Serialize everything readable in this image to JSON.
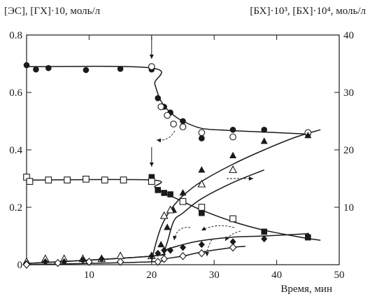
{
  "chart_data": {
    "type": "scatter",
    "title": "",
    "xlabel": "Время, мин",
    "ylabel_left": "[ЭС], [ГХ]·10, моль/л",
    "ylabel_right": "[БХ]·10³, [БХ]·10⁴, моль/л",
    "xlim": [
      0,
      50
    ],
    "ylim_left": [
      0,
      0.8
    ],
    "ylim_right": [
      0,
      40
    ],
    "x_ticks": [
      10,
      20,
      30,
      40,
      50
    ],
    "y_left_ticks": [
      0.2,
      0.4,
      0.6,
      0.8
    ],
    "y_right_ticks": [
      10,
      20,
      30,
      40
    ],
    "origin_label": "0",
    "grid": false,
    "legend": "none",
    "marker_labels": [
      {
        "name": "arrow-marker-upper",
        "x": 20
      },
      {
        "name": "arrow-marker-lower",
        "x": 20
      }
    ],
    "series": [
      {
        "marker": "filled-circle",
        "axis": "left",
        "points": [
          [
            0,
            0.695
          ],
          [
            1.5,
            0.68
          ],
          [
            3.5,
            0.685
          ],
          [
            9.5,
            0.678
          ],
          [
            15,
            0.682
          ],
          [
            20,
            0.68
          ],
          [
            21,
            0.58
          ],
          [
            22,
            0.55
          ],
          [
            23,
            0.53
          ],
          [
            25,
            0.5
          ],
          [
            28,
            0.44
          ],
          [
            33,
            0.47
          ],
          [
            38,
            0.47
          ],
          [
            45,
            0.455
          ]
        ],
        "curve": [
          [
            0,
            0.69
          ],
          [
            20,
            0.685
          ],
          [
            20.5,
            0.63
          ],
          [
            21.5,
            0.57
          ],
          [
            23,
            0.53
          ],
          [
            25,
            0.5
          ],
          [
            28,
            0.475
          ],
          [
            32,
            0.468
          ],
          [
            38,
            0.462
          ],
          [
            45,
            0.455
          ]
        ]
      },
      {
        "marker": "open-circle",
        "axis": "left",
        "points": [
          [
            20,
            0.69
          ],
          [
            21.5,
            0.55
          ],
          [
            22.5,
            0.52
          ],
          [
            23.5,
            0.49
          ],
          [
            25,
            0.48
          ],
          [
            28,
            0.46
          ],
          [
            33,
            0.445
          ],
          [
            45,
            0.46
          ]
        ],
        "curve": []
      },
      {
        "marker": "filled-square",
        "axis": "left",
        "points": [
          [
            20,
            0.305
          ],
          [
            21,
            0.26
          ],
          [
            22,
            0.25
          ],
          [
            23,
            0.245
          ],
          [
            25,
            0.22
          ],
          [
            28,
            0.18
          ],
          [
            38,
            0.115
          ],
          [
            45,
            0.095
          ]
        ],
        "curve": [
          [
            0,
            0.295
          ],
          [
            20,
            0.295
          ],
          [
            20.5,
            0.27
          ],
          [
            22,
            0.25
          ],
          [
            25,
            0.22
          ],
          [
            28,
            0.19
          ],
          [
            33,
            0.15
          ],
          [
            38,
            0.12
          ],
          [
            44,
            0.095
          ],
          [
            47,
            0.085
          ]
        ]
      },
      {
        "marker": "open-square",
        "axis": "left",
        "points": [
          [
            0,
            0.305
          ],
          [
            0.5,
            0.29
          ],
          [
            3.5,
            0.295
          ],
          [
            6.5,
            0.295
          ],
          [
            9.5,
            0.298
          ],
          [
            12.5,
            0.295
          ],
          [
            15.5,
            0.295
          ],
          [
            20,
            0.29
          ],
          [
            25,
            0.22
          ],
          [
            28,
            0.2
          ],
          [
            33,
            0.16
          ]
        ],
        "curve": []
      },
      {
        "marker": "filled-triangle",
        "axis": "right",
        "points": [
          [
            21.5,
            3.5
          ],
          [
            22.5,
            6.5
          ],
          [
            23.5,
            9.5
          ],
          [
            25,
            12.5
          ],
          [
            28,
            16.5
          ],
          [
            33,
            19
          ],
          [
            38,
            21.5
          ],
          [
            45,
            22.5
          ]
        ],
        "curve": [
          [
            20,
            0.5
          ],
          [
            20.5,
            3
          ],
          [
            21.5,
            6.5
          ],
          [
            23,
            9.5
          ],
          [
            25,
            12
          ],
          [
            28,
            14.5
          ],
          [
            33,
            17.5
          ],
          [
            38,
            20
          ],
          [
            43,
            22.2
          ],
          [
            47,
            23.5
          ]
        ]
      },
      {
        "marker": "open-triangle",
        "axis": "right",
        "points": [
          [
            0,
            0.5
          ],
          [
            3,
            1
          ],
          [
            6,
            1
          ],
          [
            9,
            1
          ],
          [
            12,
            1
          ],
          [
            15,
            1.5
          ],
          [
            20,
            1.5
          ],
          [
            22,
            8.5
          ],
          [
            23,
            9.5
          ],
          [
            28,
            14
          ],
          [
            33,
            16.5
          ]
        ],
        "curve": [
          [
            0,
            0.2
          ],
          [
            20,
            1.5
          ],
          [
            22,
            2.5
          ],
          [
            23.5,
            7.5
          ],
          [
            25,
            9
          ],
          [
            28,
            11.5
          ],
          [
            33,
            14.3
          ],
          [
            38,
            16.5
          ]
        ]
      },
      {
        "marker": "filled-diamond",
        "axis": "right",
        "points": [
          [
            0,
            0.2
          ],
          [
            3,
            0.5
          ],
          [
            6,
            0.5
          ],
          [
            9,
            0.8
          ],
          [
            12,
            1
          ],
          [
            15,
            0.5
          ],
          [
            20,
            1.5
          ],
          [
            21,
            2
          ],
          [
            22,
            2.5
          ],
          [
            23,
            2.5
          ],
          [
            25,
            3
          ],
          [
            28,
            3.5
          ],
          [
            33,
            4
          ],
          [
            38,
            4.5
          ],
          [
            45,
            5
          ]
        ],
        "curve": [
          [
            0,
            0.2
          ],
          [
            20,
            1.5
          ],
          [
            22,
            2.5
          ],
          [
            25,
            3.5
          ],
          [
            28,
            4.2
          ],
          [
            33,
            4.8
          ],
          [
            38,
            5
          ],
          [
            45,
            5.4
          ]
        ]
      },
      {
        "marker": "open-diamond",
        "axis": "right",
        "points": [
          [
            0,
            0
          ],
          [
            5,
            0.3
          ],
          [
            10,
            0.5
          ],
          [
            15,
            0.5
          ],
          [
            21,
            0.5
          ],
          [
            22,
            1
          ],
          [
            25,
            1.5
          ],
          [
            28,
            2
          ],
          [
            33,
            3
          ]
        ],
        "curve": [
          [
            0,
            0
          ],
          [
            20,
            0.5
          ],
          [
            22,
            1
          ],
          [
            25,
            1.5
          ],
          [
            28,
            2.2
          ],
          [
            33,
            3
          ],
          [
            35,
            3.2
          ]
        ]
      }
    ]
  }
}
